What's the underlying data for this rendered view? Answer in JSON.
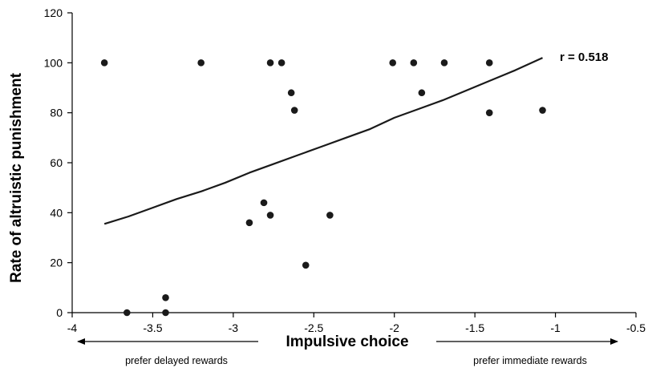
{
  "chart_data": {
    "type": "scatter",
    "xlabel": "Impulsive choice",
    "ylabel": "Rate of altruistic punishment",
    "xlim": [
      -4,
      -0.5
    ],
    "ylim": [
      0,
      120
    ],
    "x_ticks": [
      -4,
      -3.5,
      -3,
      -2.5,
      -2,
      -1.5,
      -1,
      -0.5
    ],
    "x_tick_labels": [
      "-4",
      "-3.5",
      "-3",
      "-2.5",
      "-2",
      "-1.5",
      "-1",
      "-0.5"
    ],
    "y_ticks": [
      0,
      20,
      40,
      60,
      80,
      100,
      120
    ],
    "y_tick_labels": [
      "0",
      "20",
      "40",
      "60",
      "80",
      "100",
      "120"
    ],
    "grid": false,
    "legend": "none",
    "points": [
      {
        "x": -3.8,
        "y": 100
      },
      {
        "x": -3.66,
        "y": 0
      },
      {
        "x": -3.42,
        "y": 0
      },
      {
        "x": -3.42,
        "y": 6
      },
      {
        "x": -3.2,
        "y": 100
      },
      {
        "x": -2.9,
        "y": 36
      },
      {
        "x": -2.81,
        "y": 44
      },
      {
        "x": -2.77,
        "y": 39
      },
      {
        "x": -2.77,
        "y": 100
      },
      {
        "x": -2.7,
        "y": 100
      },
      {
        "x": -2.64,
        "y": 88
      },
      {
        "x": -2.62,
        "y": 81
      },
      {
        "x": -2.55,
        "y": 19
      },
      {
        "x": -2.4,
        "y": 39
      },
      {
        "x": -2.01,
        "y": 100
      },
      {
        "x": -1.88,
        "y": 100
      },
      {
        "x": -1.83,
        "y": 88
      },
      {
        "x": -1.69,
        "y": 100
      },
      {
        "x": -1.41,
        "y": 100
      },
      {
        "x": -1.41,
        "y": 80
      },
      {
        "x": -1.08,
        "y": 81
      }
    ],
    "trendline": {
      "x": [
        -3.8,
        -3.65,
        -3.5,
        -3.35,
        -3.2,
        -3.05,
        -2.9,
        -2.75,
        -2.6,
        -2.45,
        -2.3,
        -2.15,
        -2.0,
        -1.85,
        -1.7,
        -1.55,
        -1.4,
        -1.25,
        -1.08
      ],
      "y": [
        35.5,
        38.5,
        42,
        45.5,
        48.5,
        52,
        56,
        59.5,
        63,
        66.5,
        70,
        73.5,
        78,
        81.5,
        85,
        89,
        93,
        97,
        102
      ]
    },
    "annotations": {
      "r_label": "r = 0.518",
      "left_note": "prefer delayed rewards",
      "right_note": "prefer immediate rewards"
    },
    "colors": {
      "points": "#1a1a1a",
      "line": "#1a1a1a",
      "axes": "#000000"
    }
  }
}
